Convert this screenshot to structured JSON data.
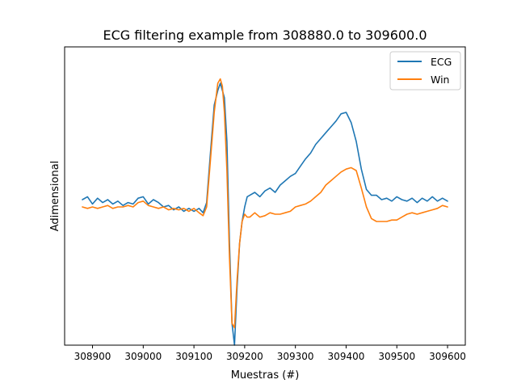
{
  "chart_data": {
    "type": "line",
    "title": "ECG filtering example from 308880.0 to 309600.0",
    "xlabel": "Muestras (#)",
    "ylabel": "Adimensional",
    "xlim": [
      308845,
      309635
    ],
    "ylim": [
      -1.0,
      1.05
    ],
    "xticks": [
      308900,
      309000,
      309100,
      309200,
      309300,
      309400,
      309500,
      309600
    ],
    "yticks_visible": false,
    "grid": false,
    "legend": "top-right",
    "series": [
      {
        "name": "ECG",
        "color": "#1f77b4",
        "x": [
          308880,
          308890,
          308900,
          308910,
          308920,
          308930,
          308940,
          308950,
          308960,
          308970,
          308980,
          308990,
          309000,
          309010,
          309020,
          309030,
          309040,
          309050,
          309060,
          309070,
          309080,
          309090,
          309100,
          309110,
          309118,
          309125,
          309132,
          309140,
          309147,
          309152,
          309156,
          309160,
          309165,
          309170,
          309175,
          309180,
          309185,
          309190,
          309195,
          309200,
          309205,
          309210,
          309220,
          309230,
          309240,
          309250,
          309260,
          309270,
          309280,
          309290,
          309300,
          309310,
          309320,
          309330,
          309340,
          309350,
          309360,
          309370,
          309380,
          309390,
          309400,
          309410,
          309420,
          309430,
          309440,
          309450,
          309460,
          309470,
          309480,
          309490,
          309500,
          309510,
          309520,
          309530,
          309540,
          309550,
          309560,
          309570,
          309580,
          309590,
          309600
        ],
        "y": [
          0.0,
          0.02,
          -0.03,
          0.01,
          -0.02,
          0.0,
          -0.03,
          -0.01,
          -0.04,
          -0.02,
          -0.03,
          0.01,
          0.02,
          -0.03,
          0.0,
          -0.02,
          -0.05,
          -0.04,
          -0.07,
          -0.05,
          -0.08,
          -0.06,
          -0.08,
          -0.06,
          -0.09,
          -0.02,
          0.3,
          0.65,
          0.75,
          0.8,
          0.75,
          0.7,
          0.4,
          -0.3,
          -0.85,
          -1.0,
          -0.6,
          -0.3,
          -0.15,
          -0.05,
          0.02,
          0.03,
          0.05,
          0.02,
          0.06,
          0.08,
          0.05,
          0.1,
          0.13,
          0.16,
          0.18,
          0.23,
          0.28,
          0.32,
          0.38,
          0.42,
          0.46,
          0.5,
          0.54,
          0.59,
          0.6,
          0.53,
          0.4,
          0.21,
          0.07,
          0.03,
          0.03,
          0.0,
          0.01,
          -0.01,
          0.02,
          0.0,
          -0.01,
          0.01,
          -0.02,
          0.01,
          -0.01,
          0.02,
          -0.01,
          0.01,
          -0.01
        ]
      },
      {
        "name": "Win",
        "color": "#ff7f0e",
        "x": [
          308880,
          308890,
          308900,
          308910,
          308920,
          308930,
          308940,
          308950,
          308960,
          308970,
          308980,
          308990,
          309000,
          309010,
          309020,
          309030,
          309040,
          309050,
          309060,
          309070,
          309080,
          309090,
          309100,
          309110,
          309118,
          309125,
          309132,
          309140,
          309147,
          309152,
          309156,
          309160,
          309165,
          309170,
          309175,
          309180,
          309185,
          309190,
          309195,
          309200,
          309205,
          309210,
          309220,
          309230,
          309240,
          309250,
          309260,
          309270,
          309280,
          309290,
          309300,
          309310,
          309320,
          309330,
          309340,
          309350,
          309360,
          309370,
          309380,
          309390,
          309400,
          309410,
          309420,
          309430,
          309440,
          309450,
          309460,
          309470,
          309480,
          309490,
          309500,
          309510,
          309520,
          309530,
          309540,
          309550,
          309560,
          309570,
          309580,
          309590,
          309600
        ],
        "y": [
          -0.05,
          -0.06,
          -0.05,
          -0.06,
          -0.05,
          -0.04,
          -0.06,
          -0.05,
          -0.05,
          -0.04,
          -0.05,
          -0.02,
          -0.01,
          -0.04,
          -0.05,
          -0.06,
          -0.05,
          -0.07,
          -0.06,
          -0.07,
          -0.06,
          -0.08,
          -0.06,
          -0.09,
          -0.11,
          -0.05,
          0.25,
          0.6,
          0.8,
          0.83,
          0.78,
          0.6,
          0.2,
          -0.4,
          -0.85,
          -0.88,
          -0.55,
          -0.3,
          -0.15,
          -0.1,
          -0.12,
          -0.12,
          -0.09,
          -0.12,
          -0.11,
          -0.09,
          -0.1,
          -0.1,
          -0.09,
          -0.08,
          -0.05,
          -0.04,
          -0.03,
          -0.01,
          0.02,
          0.05,
          0.1,
          0.13,
          0.16,
          0.19,
          0.21,
          0.22,
          0.2,
          0.08,
          -0.05,
          -0.13,
          -0.15,
          -0.15,
          -0.15,
          -0.14,
          -0.14,
          -0.12,
          -0.1,
          -0.09,
          -0.1,
          -0.09,
          -0.08,
          -0.07,
          -0.06,
          -0.04,
          -0.05
        ]
      }
    ]
  }
}
